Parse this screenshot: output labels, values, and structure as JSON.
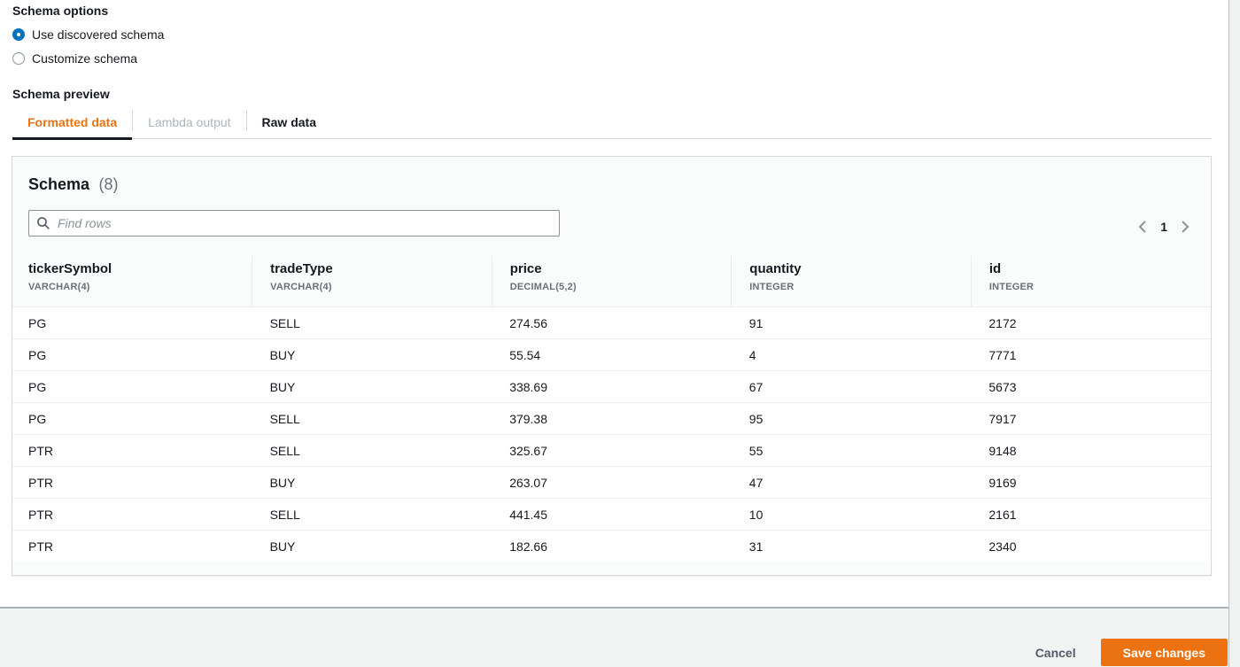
{
  "schema_options": {
    "label": "Schema options",
    "radios": [
      {
        "label": "Use discovered schema",
        "selected": true
      },
      {
        "label": "Customize schema",
        "selected": false
      }
    ],
    "preview_label": "Schema preview"
  },
  "tabs": [
    {
      "label": "Formatted data",
      "state": "active"
    },
    {
      "label": "Lambda output",
      "state": "disabled"
    },
    {
      "label": "Raw data",
      "state": "plain"
    }
  ],
  "table_panel": {
    "title": "Schema",
    "count": "(8)",
    "search_placeholder": "Find rows",
    "pagination": {
      "current_page": "1",
      "prev_icon": "chevron-left",
      "next_icon": "chevron-right"
    },
    "columns": [
      {
        "name": "tickerSymbol",
        "type": "VARCHAR(4)"
      },
      {
        "name": "tradeType",
        "type": "VARCHAR(4)"
      },
      {
        "name": "price",
        "type": "DECIMAL(5,2)"
      },
      {
        "name": "quantity",
        "type": "INTEGER"
      },
      {
        "name": "id",
        "type": "INTEGER"
      }
    ],
    "rows": [
      [
        "PG",
        "SELL",
        "274.56",
        "91",
        "2172"
      ],
      [
        "PG",
        "BUY",
        "55.54",
        "4",
        "7771"
      ],
      [
        "PG",
        "BUY",
        "338.69",
        "67",
        "5673"
      ],
      [
        "PG",
        "SELL",
        "379.38",
        "95",
        "7917"
      ],
      [
        "PTR",
        "SELL",
        "325.67",
        "55",
        "9148"
      ],
      [
        "PTR",
        "BUY",
        "263.07",
        "47",
        "9169"
      ],
      [
        "PTR",
        "SELL",
        "441.45",
        "10",
        "2161"
      ],
      [
        "PTR",
        "BUY",
        "182.66",
        "31",
        "2340"
      ]
    ]
  },
  "footer": {
    "cancel_label": "Cancel",
    "save_label": "Save changes"
  },
  "colors": {
    "accent_orange": "#ec7211",
    "radio_selected_blue": "#0073bb",
    "active_tab_underline": "#16191f",
    "text_dark": "#16191f",
    "text_muted": "#687078",
    "disabled_tab": "#aab7b8",
    "row_separator": "#eaeded",
    "panel_border": "#d5dbdb",
    "footer_background": "#f2f3f3"
  }
}
